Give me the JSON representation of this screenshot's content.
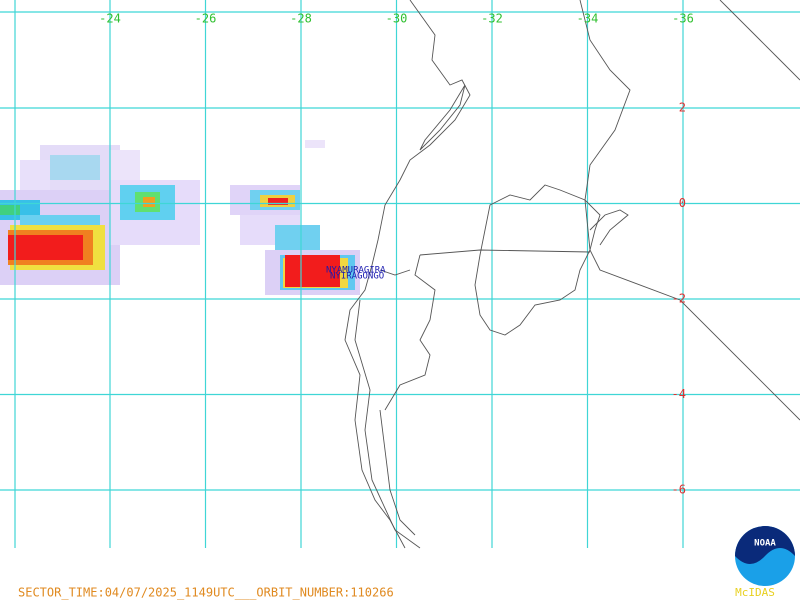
{
  "map": {
    "longitude_labels": [
      "-24",
      "-26",
      "-28",
      "-30",
      "-32",
      "-34",
      "-36"
    ],
    "latitude_labels": [
      "2",
      "0",
      "-2",
      "-4",
      "-6"
    ],
    "volcanoes": [
      "NYAMURAGIRA",
      "NYIRAGONGO"
    ],
    "footer": "SECTOR_TIME:04/07/2025_1149UTC___ORBIT_NUMBER:110266",
    "logo": "NOAA",
    "software": "McIDAS"
  }
}
